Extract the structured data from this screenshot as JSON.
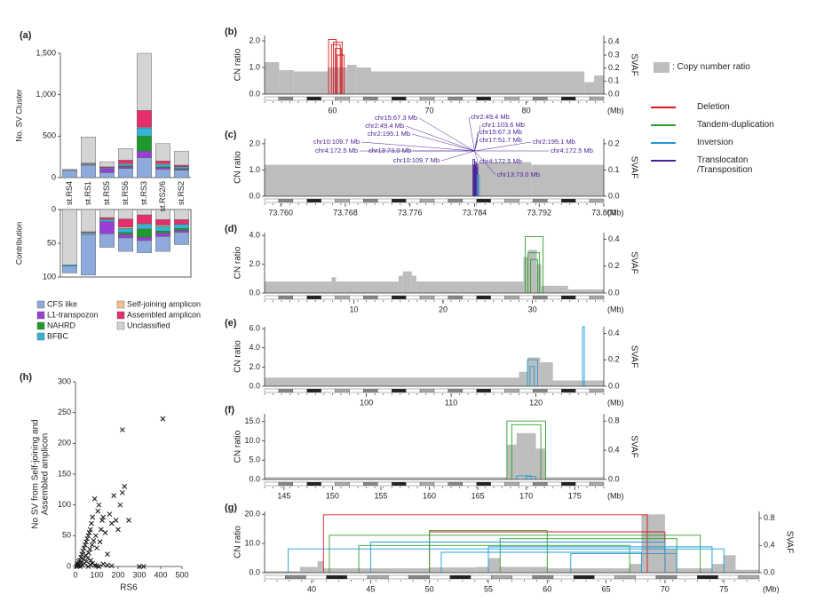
{
  "chart_data": [
    {
      "type": "stacked",
      "label": "(a)",
      "ylabel": "No. SV Cluster",
      "contribution_label": "Contribution",
      "categories": [
        "st.RS4",
        "st.RS1",
        "st.RS5",
        "st.RS6",
        "st.RS3",
        "st.RS2/6",
        "st.RS2"
      ],
      "ylim": [
        0,
        1500
      ],
      "yticks": [
        0,
        500,
        {
          "value": 1000,
          "label": "1,000"
        },
        {
          "value": 1500,
          "label": "1,500"
        }
      ],
      "contribution_ylim": [
        0,
        100
      ],
      "contribution_yticks": [
        0,
        50,
        100
      ],
      "series": [
        {
          "name": "CFS like",
          "color": "#8eaadb",
          "values": [
            85,
            150,
            60,
            110,
            240,
            100,
            90
          ],
          "contribution": [
            10,
            60,
            20,
            20,
            18,
            22,
            18
          ]
        },
        {
          "name": "L1-transpozon",
          "color": "#9a3fd5",
          "values": [
            0,
            0,
            50,
            20,
            80,
            20,
            10
          ],
          "contribution": [
            0,
            0,
            18,
            5,
            5,
            5,
            3
          ]
        },
        {
          "name": "NAHRD",
          "color": "#1e9a2a",
          "values": [
            0,
            0,
            0,
            10,
            180,
            10,
            10
          ],
          "contribution": [
            0,
            0,
            0,
            3,
            12,
            3,
            3
          ]
        },
        {
          "name": "BFBC",
          "color": "#34b5d5",
          "values": [
            5,
            10,
            10,
            20,
            100,
            30,
            20
          ],
          "contribution": [
            2,
            2,
            3,
            6,
            7,
            7,
            6
          ]
        },
        {
          "name": "Self-joining amplicon",
          "color": "#f4c38c",
          "values": [
            0,
            10,
            0,
            10,
            10,
            10,
            0
          ],
          "contribution": [
            0,
            1,
            0,
            2,
            1,
            2,
            0
          ]
        },
        {
          "name": "Assembled amplicon",
          "color": "#e62d6e",
          "values": [
            0,
            5,
            10,
            40,
            200,
            30,
            20
          ],
          "contribution": [
            0,
            1,
            3,
            12,
            13,
            8,
            7
          ]
        },
        {
          "name": "Unclassified",
          "color": "#d4d4d4",
          "values": [
            10,
            315,
            60,
            140,
            690,
            210,
            170
          ],
          "contribution": [
            82,
            33,
            12,
            14,
            8,
            15,
            15
          ]
        }
      ]
    },
    {
      "type": "scatter",
      "label": "(h)",
      "xlabel": "RS6",
      "ylabel": [
        "No SV from Self-joining and",
        "Assembled amplicon"
      ],
      "xlim": [
        0,
        500
      ],
      "xticks": [
        0,
        100,
        200,
        300,
        400,
        500
      ],
      "ylim": [
        0,
        300
      ],
      "yticks": [
        0,
        50,
        100,
        150,
        200,
        250,
        300
      ],
      "x": [
        5,
        8,
        10,
        12,
        15,
        18,
        20,
        22,
        25,
        28,
        30,
        32,
        35,
        38,
        40,
        42,
        45,
        48,
        50,
        52,
        55,
        58,
        60,
        62,
        65,
        68,
        70,
        72,
        75,
        78,
        80,
        85,
        90,
        95,
        100,
        105,
        110,
        115,
        120,
        125,
        130,
        140,
        150,
        160,
        170,
        180,
        190,
        200,
        210,
        220,
        230,
        250,
        300,
        320,
        410,
        60,
        70,
        80,
        90,
        100,
        110,
        130,
        150,
        170,
        220
      ],
      "y": [
        0,
        2,
        5,
        1,
        8,
        3,
        10,
        0,
        15,
        6,
        20,
        2,
        25,
        12,
        30,
        5,
        35,
        18,
        40,
        8,
        45,
        14,
        50,
        22,
        55,
        28,
        60,
        10,
        70,
        35,
        80,
        42,
        110,
        50,
        30,
        90,
        100,
        40,
        60,
        75,
        80,
        55,
        20,
        85,
        70,
        115,
        75,
        60,
        100,
        120,
        130,
        75,
        0,
        0,
        240,
        0,
        3,
        5,
        2,
        1,
        0,
        4,
        2,
        1,
        222
      ]
    },
    {
      "type": "genome",
      "label": "(b)",
      "ylabel": "CN ratio",
      "y2label": "SVAF",
      "xunit": "(Mb)",
      "xlim": [
        53,
        88
      ],
      "xticks": [
        60,
        70,
        80
      ],
      "ylim": [
        0,
        2.2
      ],
      "yticks": [
        {
          "value": 0,
          "label": "0.0"
        },
        {
          "value": 1,
          "label": "1.0"
        },
        {
          "value": 2,
          "label": "2.0"
        }
      ],
      "y2lim": [
        0,
        0.45
      ],
      "y2ticks": [
        {
          "value": 0,
          "label": "0.0"
        },
        0.1,
        0.2,
        0.3,
        0.4
      ],
      "cn": {
        "start": [
          53,
          54.5,
          56,
          59.5,
          61.5,
          62.5,
          64,
          86,
          87
        ],
        "end": [
          54.5,
          56,
          59.5,
          61.5,
          62.5,
          64,
          86,
          87,
          88
        ],
        "values": [
          1.2,
          0.9,
          0.85,
          1.0,
          1.1,
          1.0,
          0.85,
          0.45,
          0.7
        ]
      },
      "sv": [
        {
          "color": "#d7191c",
          "x1": [
            59.6,
            59.9,
            60.1,
            60.3,
            60.5
          ],
          "x2": [
            60.4,
            60.8,
            61.0,
            60.9,
            61.2
          ],
          "values": [
            0.42,
            0.38,
            0.4,
            0.35,
            0.3
          ]
        }
      ]
    },
    {
      "type": "genome",
      "label": "(c)",
      "ylabel": "CN ratio",
      "y2label": "SVAF",
      "xunit": "(Mb)",
      "xlim": [
        73.758,
        73.8
      ],
      "xticks": [
        {
          "value": 73.76,
          "label": "73.760"
        },
        73.768,
        73.776,
        73.784,
        73.792,
        {
          "value": 73.8,
          "label": "73.800"
        }
      ],
      "ylim": [
        0,
        2.2
      ],
      "yticks": [
        {
          "value": 0,
          "label": "0.0"
        },
        {
          "value": 1,
          "label": "1.0"
        },
        {
          "value": 2,
          "label": "2.0"
        }
      ],
      "y2lim": [
        0,
        0.22
      ],
      "y2ticks": [
        {
          "value": 0,
          "label": "0.0"
        },
        0.1,
        0.2
      ],
      "cn": {
        "start": [
          73.758,
          73.784,
          73.791
        ],
        "end": [
          73.784,
          73.791,
          73.8
        ],
        "values": [
          1.2,
          1.3,
          1.2
        ]
      },
      "sv": [
        {
          "color": "#4b2396",
          "x1": [
            73.7838,
            73.7839,
            73.784,
            73.7841,
            73.7839,
            73.7842
          ],
          "x2": [
            73.784,
            73.7841,
            73.7842,
            73.7843,
            73.7841,
            73.7844
          ],
          "values": [
            0.14,
            0.12,
            0.13,
            0.11,
            0.1,
            0.12
          ]
        },
        {
          "color": "#1f9bd7",
          "x1": [
            73.7843
          ],
          "x2": [
            73.7846
          ],
          "values": [
            0.08
          ]
        }
      ],
      "annotations": [
        "chr15:67.3 Mb",
        "chr2:49.4 Mb",
        "chr10:109.7 Mb",
        "chr2:195.1 Mb",
        "chr4:172.5 Mb",
        "chr13:73.0 Mb",
        "chr2:49.4 Mb",
        "chr1:103.6 Mb",
        "chr15:67.3 Mb",
        "chr17:51.7 Mb",
        "chr2:195.1 Mb",
        "chr4:172.5 Mb",
        "chr10:109.7 Mb",
        "chr4:172.5 Mb",
        "chr13:73.0 Mb"
      ]
    },
    {
      "type": "genome",
      "label": "(d)",
      "ylabel": "CN ratio",
      "y2label": "SVAF",
      "xunit": "(Mb)",
      "xlim": [
        0,
        38
      ],
      "xticks": [
        10,
        20,
        30
      ],
      "ylim": [
        0,
        4.2
      ],
      "yticks": [
        {
          "value": 0,
          "label": "0.0"
        },
        {
          "value": 2,
          "label": "2.0"
        },
        {
          "value": 4,
          "label": "4.0"
        }
      ],
      "y2lim": [
        0,
        0.45
      ],
      "y2ticks": [
        {
          "value": 0,
          "label": "0.0"
        },
        0.2,
        0.4
      ],
      "cn": {
        "start": [
          0,
          7.5,
          8,
          15,
          15.5,
          16.5,
          17,
          29,
          29.5,
          30.5,
          31,
          34
        ],
        "end": [
          7.5,
          8,
          15,
          15.5,
          16.5,
          17,
          29,
          29.5,
          30.5,
          31,
          34,
          38
        ],
        "values": [
          0.8,
          1.1,
          0.8,
          1.2,
          1.5,
          1.2,
          0.8,
          2.5,
          3.0,
          2.0,
          0.5,
          0.25
        ]
      },
      "sv": [
        {
          "color": "#2ca02c",
          "x1": [
            29.2,
            29.5,
            29.8
          ],
          "x2": [
            31.2,
            30.8,
            30.6
          ],
          "values": [
            0.42,
            0.3,
            0.25
          ]
        }
      ]
    },
    {
      "type": "genome",
      "label": "(e)",
      "ylabel": "CN ratio",
      "y2label": "SVAF",
      "xunit": "(Mb)",
      "xlim": [
        88,
        128
      ],
      "xticks": [
        100,
        110,
        120
      ],
      "ylim": [
        0,
        6.2
      ],
      "yticks": [
        {
          "value": 0,
          "label": "0.0"
        },
        {
          "value": 2,
          "label": "2.0"
        },
        {
          "value": 4,
          "label": "4.0"
        },
        {
          "value": 6,
          "label": "6.0"
        }
      ],
      "y2lim": [
        0,
        0.45
      ],
      "y2ticks": [
        {
          "value": 0,
          "label": "0.0"
        },
        0.2,
        0.4
      ],
      "cn": {
        "start": [
          88,
          118,
          119,
          120.5,
          122
        ],
        "end": [
          118,
          119,
          120.5,
          122,
          128
        ],
        "values": [
          0.9,
          1.5,
          3.0,
          2.5,
          0.6
        ]
      },
      "sv": [
        {
          "color": "#1f9bd7",
          "x1": [
            119,
            119.3,
            125.5
          ],
          "x2": [
            120.2,
            119.8,
            125.7
          ],
          "values": [
            0.2,
            0.15,
            0.45
          ]
        }
      ]
    },
    {
      "type": "genome",
      "label": "(f)",
      "ylabel": "CN ratio",
      "y2label": "SVAF",
      "xunit": "(Mb)",
      "xlim": [
        143,
        178
      ],
      "xticks": [
        145,
        150,
        155,
        160,
        165,
        170,
        175
      ],
      "ylim": [
        0,
        17
      ],
      "yticks": [
        {
          "value": 0,
          "label": "0.0"
        },
        {
          "value": 5,
          "label": "5.0"
        },
        {
          "value": 10,
          "label": "10.0"
        },
        {
          "value": 15,
          "label": "15.0"
        }
      ],
      "y2lim": [
        0,
        0.9
      ],
      "y2ticks": [
        {
          "value": 0,
          "label": "0.0"
        },
        0.4,
        0.8
      ],
      "cn": {
        "start": [
          143,
          168,
          169,
          171,
          172
        ],
        "end": [
          168,
          169,
          171,
          172,
          178
        ],
        "values": [
          0.6,
          9,
          12,
          8,
          0.6
        ]
      },
      "sv": [
        {
          "color": "#2ca02c",
          "x1": [
            168,
            168.5
          ],
          "x2": [
            172,
            171.5
          ],
          "values": [
            0.8,
            0.75
          ]
        },
        {
          "color": "#1f9bd7",
          "x1": [
            169,
            170
          ],
          "x2": [
            170.5,
            171
          ],
          "values": [
            0.05,
            0.04
          ]
        }
      ]
    },
    {
      "type": "genome",
      "label": "(g)",
      "ylabel": "CN ratio",
      "y2label": "SVAF",
      "xunit": "(Mb)",
      "xlim": [
        36,
        78
      ],
      "xticks": [
        40,
        45,
        50,
        55,
        60,
        65,
        70,
        75
      ],
      "ylim": [
        0,
        21
      ],
      "yticks": [
        {
          "value": 0,
          "label": "0.0"
        },
        {
          "value": 10,
          "label": "10.0"
        },
        {
          "value": 20,
          "label": "20.0"
        }
      ],
      "y2lim": [
        0,
        0.9
      ],
      "y2ticks": [
        {
          "value": 0,
          "label": "0.0"
        },
        0.4,
        0.8
      ],
      "cn": {
        "start": [
          36,
          39,
          40.5,
          41,
          45,
          50,
          54,
          55,
          56,
          60,
          67,
          68,
          70,
          71,
          74,
          75,
          76
        ],
        "end": [
          39,
          40.5,
          41,
          45,
          50,
          54,
          55,
          56,
          60,
          67,
          68,
          70,
          71,
          74,
          75,
          76,
          78
        ],
        "values": [
          0.5,
          2,
          4,
          1.5,
          1.5,
          1.8,
          2,
          5,
          2,
          1.5,
          3,
          20,
          8,
          1.5,
          3,
          6,
          1
        ]
      },
      "sv": [
        {
          "color": "#d7191c",
          "x1": [
            41,
            50
          ],
          "x2": [
            68.5,
            70
          ],
          "values": [
            0.85,
            0.6
          ]
        },
        {
          "color": "#2ca02c",
          "x1": [
            41.5,
            50,
            56,
            44
          ],
          "x2": [
            73,
            60,
            71,
            67
          ],
          "values": [
            0.55,
            0.62,
            0.5,
            0.4
          ]
        },
        {
          "color": "#1f9bd7",
          "x1": [
            38,
            45,
            51,
            55,
            62
          ],
          "x2": [
            75,
            70,
            68,
            74,
            71
          ],
          "values": [
            0.35,
            0.45,
            0.3,
            0.38,
            0.28
          ]
        }
      ]
    }
  ],
  "sv_legend": {
    "cn_label": ": Copy number ratio",
    "cn_color": "#bdbdbd",
    "items": [
      {
        "name": "Deletion",
        "color": "#d7191c"
      },
      {
        "name": "Tandem-duplication",
        "color": "#2ca02c"
      },
      {
        "name": "Inversion",
        "color": "#1f9bd7"
      },
      {
        "name": "Translocaton /Transposition",
        "color": "#4b2396"
      }
    ]
  }
}
